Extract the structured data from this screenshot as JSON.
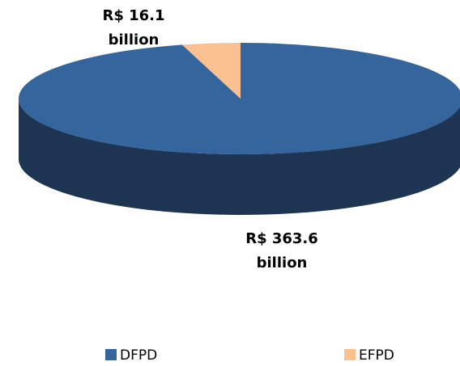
{
  "chart_data": {
    "type": "pie",
    "categories": [
      "DFPD",
      "EFPD"
    ],
    "values": [
      363.6,
      16.1
    ],
    "value_labels": [
      "R$ 363.6 billion",
      "R$ 16.1 billion"
    ],
    "colors": [
      "#34659d",
      "#fac090"
    ],
    "side_colors": [
      "#1d3452",
      "#c99a70"
    ],
    "legend": "bottom"
  }
}
